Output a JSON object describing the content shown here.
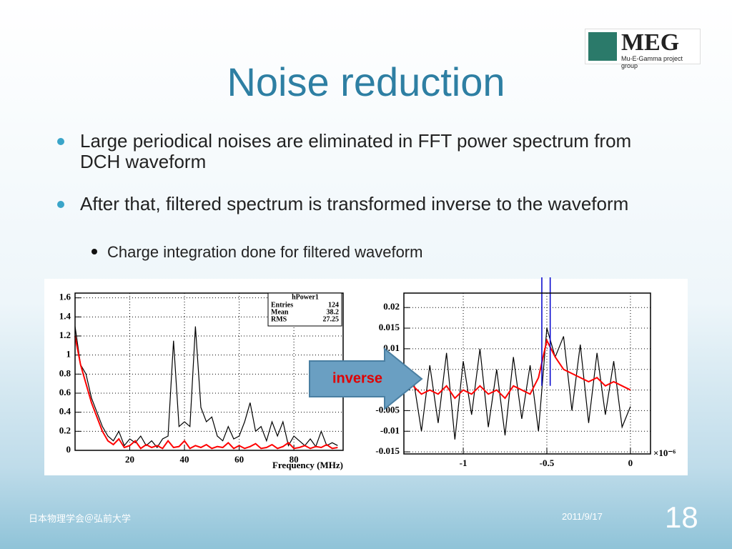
{
  "slide": {
    "title": "Noise reduction",
    "logo": {
      "name": "MEG",
      "subtitle": "Mu-E-Gamma project group"
    },
    "bullets": [
      {
        "text": "Large periodical noises are eliminated in FFT power spectrum from DCH waveform"
      },
      {
        "text": "After that, filtered spectrum is transformed inverse to the waveform",
        "sub": [
          "Charge integration done for filtered waveform"
        ]
      }
    ],
    "arrow_label": "inverse",
    "footer": {
      "left": "日本物理学会＠弘前大学",
      "date": "2011/9/17",
      "page": "18"
    }
  },
  "chart_data": [
    {
      "type": "line",
      "xlabel": "Frequency (MHz)",
      "stats": {
        "name": "hPower1",
        "rows": [
          [
            "Entries",
            "124"
          ],
          [
            "Mean",
            "38.2"
          ],
          [
            "RMS",
            "27.25"
          ]
        ]
      },
      "x": [
        0,
        2,
        4,
        6,
        8,
        10,
        12,
        14,
        16,
        18,
        20,
        22,
        24,
        26,
        28,
        30,
        32,
        34,
        36,
        38,
        40,
        42,
        44,
        46,
        48,
        50,
        52,
        54,
        56,
        58,
        60,
        62,
        64,
        66,
        68,
        70,
        72,
        74,
        76,
        78,
        80,
        82,
        84,
        86,
        88,
        90,
        92,
        94,
        96
      ],
      "series": [
        {
          "color": "#000000",
          "values": [
            1.3,
            0.9,
            0.8,
            0.55,
            0.4,
            0.25,
            0.15,
            0.1,
            0.2,
            0.05,
            0.12,
            0.08,
            0.15,
            0.05,
            0.1,
            0.03,
            0.12,
            0.15,
            1.15,
            0.25,
            0.3,
            0.25,
            1.3,
            0.45,
            0.3,
            0.35,
            0.15,
            0.1,
            0.25,
            0.12,
            0.15,
            0.3,
            0.5,
            0.2,
            0.25,
            0.1,
            0.3,
            0.15,
            0.3,
            0.05,
            0.15,
            0.1,
            0.05,
            0.12,
            0.04,
            0.2,
            0.05,
            0.08,
            0.05
          ]
        },
        {
          "color": "#ff0000",
          "values": [
            1.2,
            0.9,
            0.7,
            0.5,
            0.35,
            0.2,
            0.1,
            0.06,
            0.12,
            0.03,
            0.05,
            0.1,
            0.02,
            0.06,
            0.03,
            0.05,
            0.02,
            0.1,
            0.03,
            0.04,
            0.1,
            0.02,
            0.05,
            0.03,
            0.06,
            0.02,
            0.04,
            0.03,
            0.08,
            0.02,
            0.05,
            0.02,
            0.04,
            0.07,
            0.02,
            0.03,
            0.06,
            0.02,
            0.04,
            0.08,
            0.02,
            0.03,
            0.05,
            0.02,
            0.04,
            0.03,
            0.06,
            0.02,
            0.03
          ]
        }
      ],
      "xlim": [
        0,
        98
      ],
      "ylim": [
        0,
        1.65
      ],
      "xticks": [
        20,
        40,
        60,
        80
      ],
      "yticks": [
        0,
        0.2,
        0.4,
        0.6,
        0.8,
        1,
        1.2,
        1.4,
        1.6
      ],
      "grid": true
    },
    {
      "type": "line",
      "x_multiplier_label": "×10⁻⁶",
      "x": [
        -1.3,
        -1.25,
        -1.2,
        -1.15,
        -1.1,
        -1.05,
        -1,
        -0.95,
        -0.9,
        -0.85,
        -0.8,
        -0.75,
        -0.7,
        -0.65,
        -0.6,
        -0.55,
        -0.5,
        -0.45,
        -0.4,
        -0.35,
        -0.3,
        -0.25,
        -0.2,
        -0.15,
        -0.1,
        -0.05,
        0
      ],
      "series": [
        {
          "color": "#000000",
          "values": [
            0.003,
            -0.01,
            0.006,
            -0.008,
            0.009,
            -0.012,
            0.007,
            -0.006,
            0.01,
            -0.009,
            0.005,
            -0.011,
            0.008,
            -0.007,
            0.006,
            -0.01,
            0.015,
            0.008,
            0.013,
            -0.005,
            0.011,
            -0.008,
            0.009,
            -0.006,
            0.007,
            -0.009,
            -0.004
          ]
        },
        {
          "color": "#ff0000",
          "values": [
            0.001,
            -0.001,
            0,
            -0.001,
            0.001,
            -0.002,
            0,
            -0.001,
            0.001,
            -0.001,
            0,
            -0.002,
            0.001,
            0,
            -0.001,
            0.003,
            0.012,
            0.008,
            0.005,
            0.004,
            0.003,
            0.002,
            0.003,
            0.001,
            0.002,
            0.001,
            0
          ]
        }
      ],
      "vlines": {
        "color": "#0000cc",
        "values": [
          -0.53,
          -0.48
        ]
      },
      "xlim": [
        -1.355,
        0.12
      ],
      "ylim": [
        -0.0155,
        0.0235
      ],
      "xticks": [
        -1,
        -0.5,
        0
      ],
      "yticks": [
        -0.015,
        -0.01,
        -0.005,
        0,
        0.005,
        0.01,
        0.015,
        0.02
      ],
      "grid": true
    }
  ]
}
